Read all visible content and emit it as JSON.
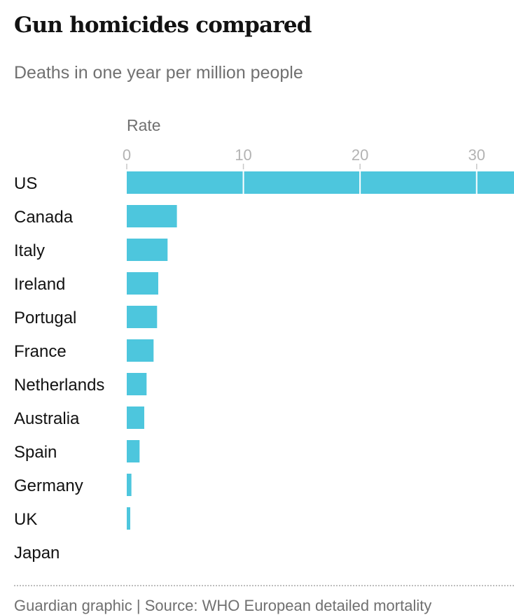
{
  "title": "Gun homicides compared",
  "subtitle": "Deaths in one year per million people",
  "footer": "Guardian graphic | Source: WHO European detailed mortality",
  "chart_data": {
    "type": "bar",
    "orientation": "horizontal",
    "title": "Gun homicides compared",
    "subtitle": "Deaths in one year per million people",
    "xlabel": "Rate",
    "ylabel": "",
    "xlim": [
      0,
      33.2
    ],
    "xticks": [
      0,
      10,
      20,
      30
    ],
    "tick_position": "top",
    "grid": false,
    "bar_color": "#4dc6dd",
    "categories": [
      "US",
      "Canada",
      "Italy",
      "Ireland",
      "Portugal",
      "France",
      "Netherlands",
      "Australia",
      "Spain",
      "Germany",
      "UK",
      "Japan"
    ],
    "values": [
      33.2,
      4.3,
      3.5,
      2.7,
      2.6,
      2.3,
      1.7,
      1.5,
      1.1,
      0.4,
      0.3,
      0.0
    ]
  }
}
